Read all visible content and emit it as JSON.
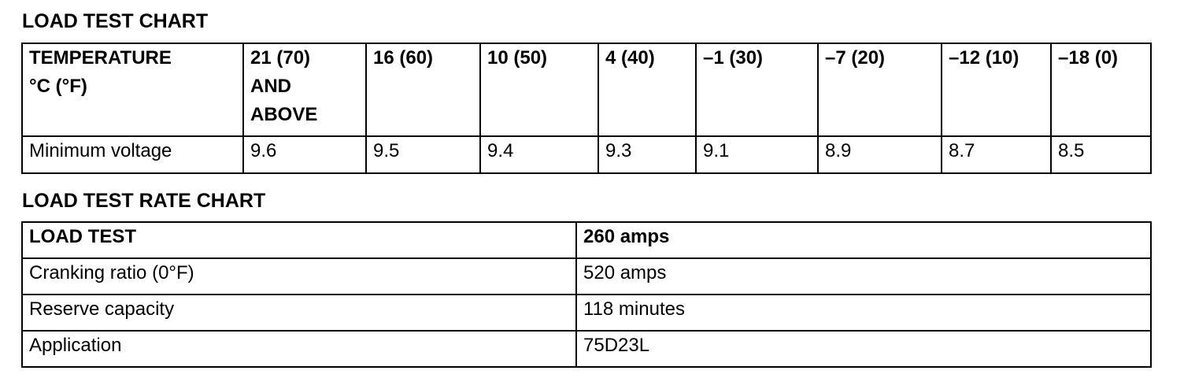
{
  "load_test_chart": {
    "title": "LOAD TEST CHART",
    "header_label": [
      "TEMPERATURE",
      "°C (°F)"
    ],
    "temperatures": [
      [
        "21 (70)",
        "AND",
        "ABOVE"
      ],
      [
        "16 (60)"
      ],
      [
        "10 (50)"
      ],
      [
        "4 (40)"
      ],
      [
        "–1 (30)"
      ],
      [
        "–7 (20)"
      ],
      [
        "–12 (10)"
      ],
      [
        "–18 (0)"
      ]
    ],
    "row_label": "Minimum voltage",
    "voltages": [
      "9.6",
      "9.5",
      "9.4",
      "9.3",
      "9.1",
      "8.9",
      "8.7",
      "8.5"
    ]
  },
  "load_test_rate_chart": {
    "title": "LOAD TEST RATE CHART",
    "rows": [
      {
        "label": "LOAD TEST",
        "value": "260 amps",
        "bold": true
      },
      {
        "label": "Cranking ratio (0°F)",
        "value": "520 amps"
      },
      {
        "label": "Reserve capacity",
        "value": "118 minutes"
      },
      {
        "label": "Application",
        "value": "75D23L"
      }
    ]
  }
}
